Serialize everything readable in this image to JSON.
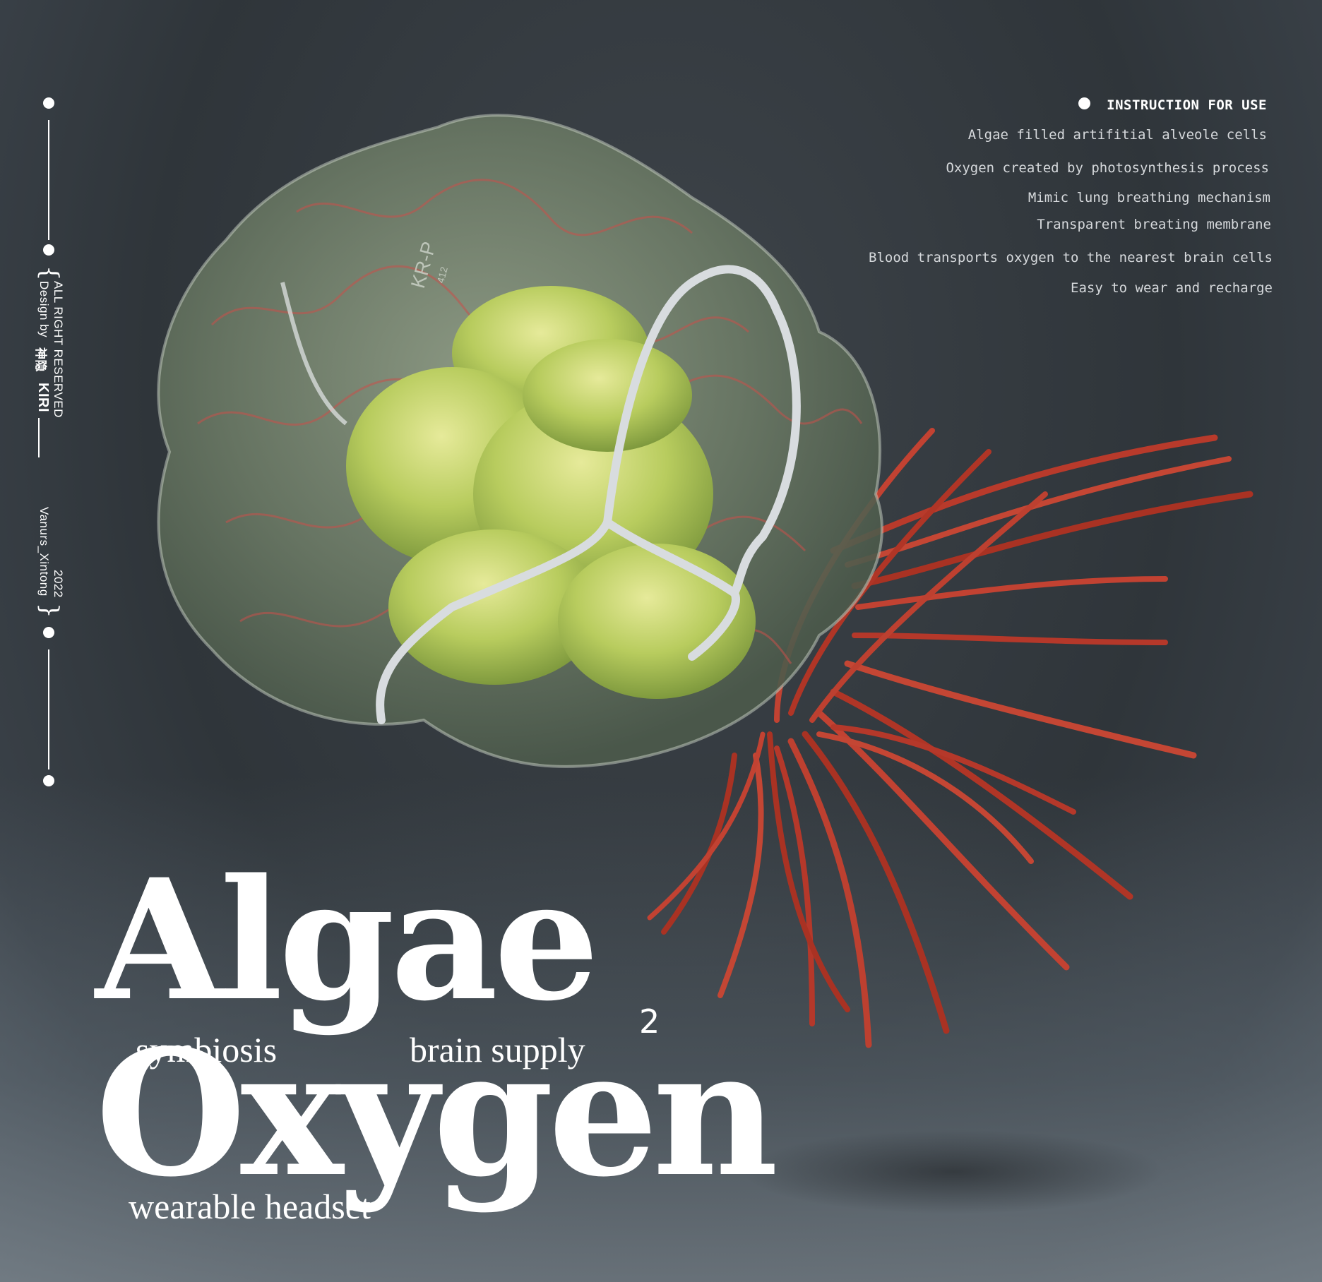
{
  "sidebar": {
    "rights": "ALL RIGHT RESERVED",
    "design_by": "Design by",
    "designer_cn": "神隐",
    "designer": "KIRI",
    "author": "Vanurs_Xintong",
    "year": "2022"
  },
  "instructions": {
    "heading": "INSTRUCTION FOR USE",
    "items": [
      "Algae filled artifitial alveole cells",
      "Oxygen created by photosynthesis process",
      "Mimic lung breathing mechanism",
      "Transparent breating membrane",
      "Blood transports oxygen to the nearest brain cells",
      "Easy to wear and recharge"
    ]
  },
  "title": {
    "word1": "Algae",
    "word2": "Oxygen",
    "subscript": "2",
    "sub1": "symbiosis",
    "sub2": "brain supply",
    "sub3": "wearable headset"
  },
  "illustration": {
    "engraving": "KR-P",
    "engraving_small": "412"
  },
  "colors": {
    "background": "#2f353a",
    "algae": "#b6cc5c",
    "vessel": "#c8402f",
    "membrane": "#7f9279"
  }
}
